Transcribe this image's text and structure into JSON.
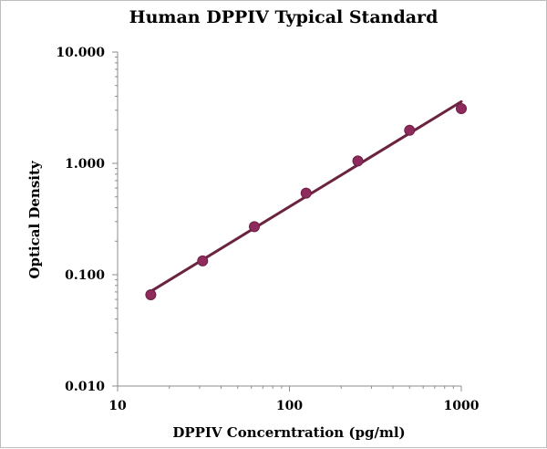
{
  "chart_data": {
    "type": "scatter",
    "title": "Human DPPIV Typical Standard",
    "xlabel": "DPPIV Concerntration (pg/ml)",
    "ylabel": "Optical Density",
    "x_scale": "log",
    "y_scale": "log",
    "xlim": [
      10,
      1000
    ],
    "ylim": [
      0.01,
      10
    ],
    "x_ticks": [
      10,
      100,
      1000
    ],
    "x_tick_labels": [
      "10",
      "100",
      "1000"
    ],
    "y_ticks": [
      0.01,
      0.1,
      1,
      10
    ],
    "y_tick_labels": [
      "0.010",
      "0.100",
      "1.000",
      "10.000"
    ],
    "grid": false,
    "legend": "none",
    "series": [
      {
        "x": [
          15.6,
          31.25,
          62.5,
          125,
          250,
          500,
          1000
        ],
        "y": [
          0.066,
          0.133,
          0.27,
          0.54,
          1.05,
          1.98,
          3.1
        ],
        "marker_color": "#8e2b5c",
        "line_color": "#6b2340",
        "trend": "power-fit"
      }
    ]
  }
}
